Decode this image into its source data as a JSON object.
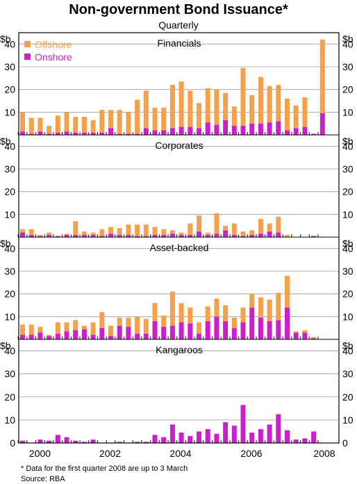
{
  "title": "Non-government Bond Issuance*",
  "subtitle": "Quarterly",
  "unit_label": "$b",
  "footnote": "*  Data for the first quarter 2008 are up to 3 March",
  "source": "Source: RBA",
  "colors": {
    "offshore": "#F5A04A",
    "onshore": "#CC1FCC",
    "grid": "#9A9A9A",
    "axis": "#000000"
  },
  "chart_data": {
    "type": "bar",
    "stacked": true,
    "x_ticks": [
      "2000",
      "2002",
      "2004",
      "2006",
      "2008"
    ],
    "quarters": [
      "1999Q3",
      "1999Q4",
      "2000Q1",
      "2000Q2",
      "2000Q3",
      "2000Q4",
      "2001Q1",
      "2001Q2",
      "2001Q3",
      "2001Q4",
      "2002Q1",
      "2002Q2",
      "2002Q3",
      "2002Q4",
      "2003Q1",
      "2003Q2",
      "2003Q3",
      "2003Q4",
      "2004Q1",
      "2004Q2",
      "2004Q3",
      "2004Q4",
      "2005Q1",
      "2005Q2",
      "2005Q3",
      "2005Q4",
      "2006Q1",
      "2006Q2",
      "2006Q3",
      "2006Q4",
      "2007Q1",
      "2007Q2",
      "2007Q3",
      "2007Q4",
      "2008Q1"
    ],
    "legend": [
      {
        "name": "Offshore",
        "color": "#F5A04A"
      },
      {
        "name": "Onshore",
        "color": "#CC1FCC"
      }
    ],
    "legend_position": "top-left",
    "grid": true,
    "panels": [
      {
        "title": "Financials",
        "ylim": [
          0,
          45
        ],
        "y_ticks": [
          10,
          20,
          30,
          40
        ],
        "series": [
          {
            "name": "Onshore",
            "values": [
              1.5,
              0.5,
              1.5,
              0.5,
              1.0,
              1.5,
              1.0,
              1.0,
              1.0,
              1.0,
              3.0,
              0.5,
              0.5,
              0.5,
              3.0,
              2.0,
              2.0,
              3.0,
              3.5,
              3.5,
              3.0,
              5.5,
              4.5,
              6.5,
              4.0,
              4.0,
              5.0,
              5.0,
              5.5,
              6.0,
              2.0,
              3.0,
              3.5,
              0.5,
              9.5
            ]
          },
          {
            "name": "Offshore",
            "values": [
              8.5,
              7.0,
              6.0,
              3.5,
              7.5,
              8.5,
              7.0,
              7.0,
              5.5,
              10.0,
              8.0,
              10.5,
              9.5,
              15.0,
              16.5,
              10.0,
              10.0,
              19.0,
              20.0,
              16.0,
              11.0,
              15.0,
              15.5,
              12.0,
              8.5,
              25.5,
              12.5,
              20.5,
              16.0,
              16.0,
              14.0,
              10.0,
              13.0,
              0.0,
              32.5
            ]
          }
        ]
      },
      {
        "title": "Corporates",
        "ylim": [
          0,
          45
        ],
        "y_ticks": [
          10,
          20,
          30,
          40
        ],
        "series": [
          {
            "name": "Onshore",
            "values": [
              2.0,
              1.0,
              0.5,
              1.0,
              0.5,
              1.0,
              1.0,
              1.0,
              1.0,
              0.5,
              1.5,
              1.0,
              1.0,
              0.5,
              0.5,
              1.0,
              1.0,
              1.5,
              1.0,
              1.0,
              2.5,
              1.0,
              1.5,
              3.0,
              1.0,
              0.5,
              1.0,
              1.5,
              2.5,
              2.0,
              0.0,
              0.0,
              0.0,
              0.5,
              0.0
            ]
          },
          {
            "name": "Offshore",
            "values": [
              1.5,
              2.5,
              0.5,
              1.0,
              0.0,
              0.5,
              6.0,
              1.5,
              1.0,
              3.0,
              3.0,
              3.0,
              4.5,
              5.0,
              5.0,
              3.5,
              2.5,
              1.5,
              1.0,
              5.0,
              7.0,
              1.0,
              9.0,
              2.0,
              5.0,
              2.0,
              2.0,
              6.5,
              3.5,
              7.0,
              1.0,
              0.0,
              0.0,
              0.0,
              0.0
            ]
          }
        ]
      },
      {
        "title": "Asset-backed",
        "ylim": [
          0,
          45
        ],
        "y_ticks": [
          10,
          20,
          30,
          40
        ],
        "series": [
          {
            "name": "Onshore",
            "values": [
              2.0,
              2.0,
              3.0,
              1.5,
              2.5,
              3.5,
              4.0,
              4.5,
              2.0,
              5.0,
              1.5,
              6.0,
              5.5,
              2.5,
              2.5,
              8.0,
              5.5,
              6.0,
              7.5,
              7.0,
              2.5,
              8.0,
              10.0,
              8.0,
              5.0,
              7.5,
              14.0,
              9.5,
              8.0,
              8.5,
              14.0,
              3.0,
              3.0,
              0.5,
              0.0
            ]
          },
          {
            "name": "Offshore",
            "values": [
              4.5,
              4.5,
              2.5,
              0.5,
              5.0,
              4.0,
              4.5,
              1.5,
              5.5,
              7.0,
              4.5,
              3.5,
              4.0,
              7.5,
              6.5,
              8.0,
              5.0,
              15.0,
              8.5,
              7.0,
              5.0,
              6.5,
              8.0,
              7.0,
              4.5,
              6.5,
              6.0,
              9.0,
              9.5,
              12.0,
              14.0,
              0.5,
              1.0,
              0.5,
              0.0
            ]
          }
        ]
      },
      {
        "title": "Kangaroos",
        "ylim": [
          0,
          45
        ],
        "y_ticks": [
          10,
          20,
          30,
          40
        ],
        "series": [
          {
            "name": "Onshore",
            "values": [
              1.0,
              0.0,
              1.5,
              1.0,
              3.5,
              2.5,
              1.0,
              0.5,
              1.5,
              0.0,
              0.0,
              0.5,
              0.0,
              0.5,
              0.5,
              3.5,
              2.5,
              8.0,
              4.5,
              3.0,
              5.0,
              6.0,
              4.0,
              9.0,
              7.5,
              16.5,
              4.5,
              6.0,
              8.0,
              12.5,
              5.5,
              1.5,
              2.0,
              5.0,
              0.0
            ]
          },
          {
            "name": "Offshore",
            "values": [
              0.0,
              0.0,
              0.0,
              0.0,
              0.0,
              0.0,
              0.0,
              0.0,
              0.0,
              0.0,
              0.0,
              0.0,
              0.0,
              0.0,
              0.0,
              0.0,
              0.0,
              0.0,
              0.0,
              0.0,
              0.0,
              0.0,
              0.0,
              0.0,
              0.0,
              0.0,
              0.0,
              0.0,
              0.0,
              0.0,
              0.0,
              0.0,
              0.0,
              0.0,
              0.0
            ]
          }
        ]
      }
    ]
  }
}
